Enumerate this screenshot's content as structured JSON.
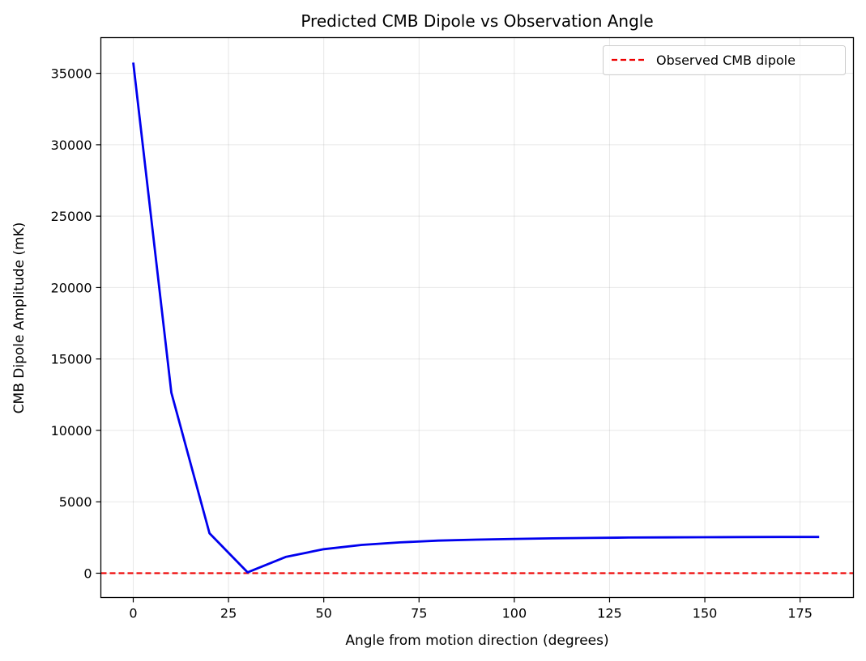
{
  "chart_data": {
    "type": "line",
    "title": "Predicted CMB Dipole vs Observation Angle",
    "xlabel": "Angle from motion direction (degrees)",
    "ylabel": "CMB Dipole Amplitude (mK)",
    "xlim": [
      -8.5,
      189
    ],
    "ylim": [
      -1700,
      37500
    ],
    "x_ticks": [
      0,
      25,
      50,
      75,
      100,
      125,
      150,
      175
    ],
    "y_ticks": [
      0,
      5000,
      10000,
      15000,
      20000,
      25000,
      30000,
      35000
    ],
    "grid": true,
    "legend_position": "top-right",
    "series": [
      {
        "color": "#0000ee",
        "x": [
          0,
          10,
          20,
          30,
          40,
          50,
          60,
          70,
          80,
          90,
          100,
          110,
          120,
          130,
          140,
          150,
          160,
          170,
          180
        ],
        "y": [
          35750,
          12650,
          2800,
          60,
          1140,
          1680,
          1980,
          2160,
          2280,
          2350,
          2400,
          2440,
          2470,
          2495,
          2510,
          2520,
          2530,
          2535,
          2540
        ]
      }
    ],
    "reference_lines": [
      {
        "name": "Observed CMB dipole",
        "y": 3.36,
        "color": "#ee0000",
        "style": "dashed"
      }
    ]
  }
}
